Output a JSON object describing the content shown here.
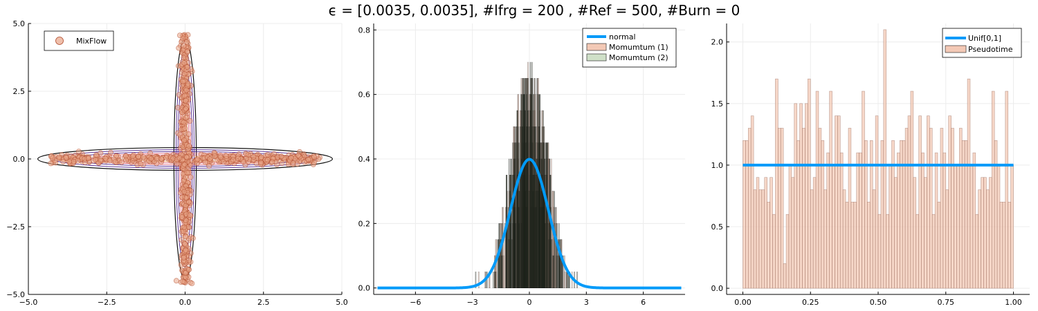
{
  "figure": {
    "title": "ϵ = [0.0035, 0.0035], #lfrg = 200 , #Ref = 500, #Burn = 0"
  },
  "colors": {
    "scatter_fill": "#e8a487",
    "scatter_edge": "#b04a2a",
    "line_blue": "#009af9",
    "hist_pink": "#f3c9b6",
    "hist_green_dark": "#26301f",
    "contour_dark": "#111111",
    "contour_purple": "#4b1f8a",
    "contour_pink": "#e0607a",
    "grid": "#ececec"
  },
  "chart_data": [
    {
      "type": "scatter",
      "title": "",
      "xlabel": "",
      "ylabel": "",
      "xlim": [
        -5,
        5
      ],
      "ylim": [
        -5,
        5
      ],
      "xticks": [
        "−5.0",
        "−2.5",
        "0.0",
        "2.5",
        "5.0"
      ],
      "yticks": [
        "−5.0",
        "−2.5",
        "0.0",
        "2.5",
        "5.0"
      ],
      "grid": true,
      "legend_position": "top-left",
      "series": [
        {
          "name": "MixFlow",
          "kind": "scatter",
          "description_shape": "cross"
        }
      ],
      "contours": {
        "shape": "cross",
        "levels": 6
      }
    },
    {
      "type": "bar",
      "title": "",
      "xlabel": "",
      "ylabel": "",
      "xlim": [
        -8.2,
        8.2
      ],
      "ylim": [
        -0.02,
        0.82
      ],
      "xticks": [
        "−6",
        "−3",
        "0",
        "3",
        "6"
      ],
      "yticks": [
        "0.0",
        "0.2",
        "0.4",
        "0.6",
        "0.8"
      ],
      "grid": true,
      "legend_position": "top-right",
      "series": [
        {
          "name": "normal",
          "kind": "line",
          "mean": 0,
          "sd": 1
        },
        {
          "name": "Momumtum (1)",
          "kind": "histogram"
        },
        {
          "name": "Momumtum (2)",
          "kind": "histogram"
        }
      ]
    },
    {
      "type": "bar",
      "title": "",
      "xlabel": "",
      "ylabel": "",
      "xlim": [
        -0.06,
        1.06
      ],
      "ylim": [
        -0.05,
        2.15
      ],
      "xticks": [
        "0.00",
        "0.25",
        "0.50",
        "0.75",
        "1.00"
      ],
      "yticks": [
        "0.0",
        "0.5",
        "1.0",
        "1.5",
        "2.0"
      ],
      "grid": true,
      "legend_position": "top-right",
      "series": [
        {
          "name": "Unif[0,1]",
          "kind": "line",
          "y": 1.0
        },
        {
          "name": "Pseudotime",
          "kind": "histogram",
          "bin_width": 0.01,
          "values": [
            1.2,
            1.2,
            1.3,
            1.4,
            0.8,
            0.9,
            0.8,
            0.8,
            0.9,
            0.7,
            0.9,
            0.6,
            1.7,
            1.3,
            1.3,
            0.2,
            0.6,
            1.0,
            0.9,
            1.5,
            1.2,
            1.5,
            1.3,
            1.5,
            1.7,
            0.8,
            0.9,
            1.6,
            1.3,
            1.2,
            0.8,
            1.1,
            1.6,
            1.0,
            1.4,
            1.4,
            1.1,
            0.8,
            0.7,
            1.3,
            0.7,
            0.7,
            1.1,
            1.1,
            1.6,
            1.2,
            0.7,
            1.2,
            0.8,
            1.4,
            0.6,
            1.2,
            2.1,
            0.6,
            1.0,
            1.2,
            0.9,
            1.1,
            1.2,
            1.2,
            1.3,
            1.4,
            1.6,
            0.9,
            0.6,
            1.4,
            1.1,
            0.9,
            1.4,
            1.3,
            0.6,
            1.1,
            0.7,
            1.3,
            1.1,
            0.8,
            1.4,
            1.3,
            1.0,
            1.0,
            1.3,
            1.2,
            1.2,
            1.7,
            1.0,
            1.1,
            0.6,
            0.8,
            0.9,
            0.9,
            0.8,
            0.9,
            1.6,
            1.2,
            1.0,
            0.7,
            0.7,
            1.6,
            0.7,
            1.0
          ]
        }
      ]
    }
  ]
}
